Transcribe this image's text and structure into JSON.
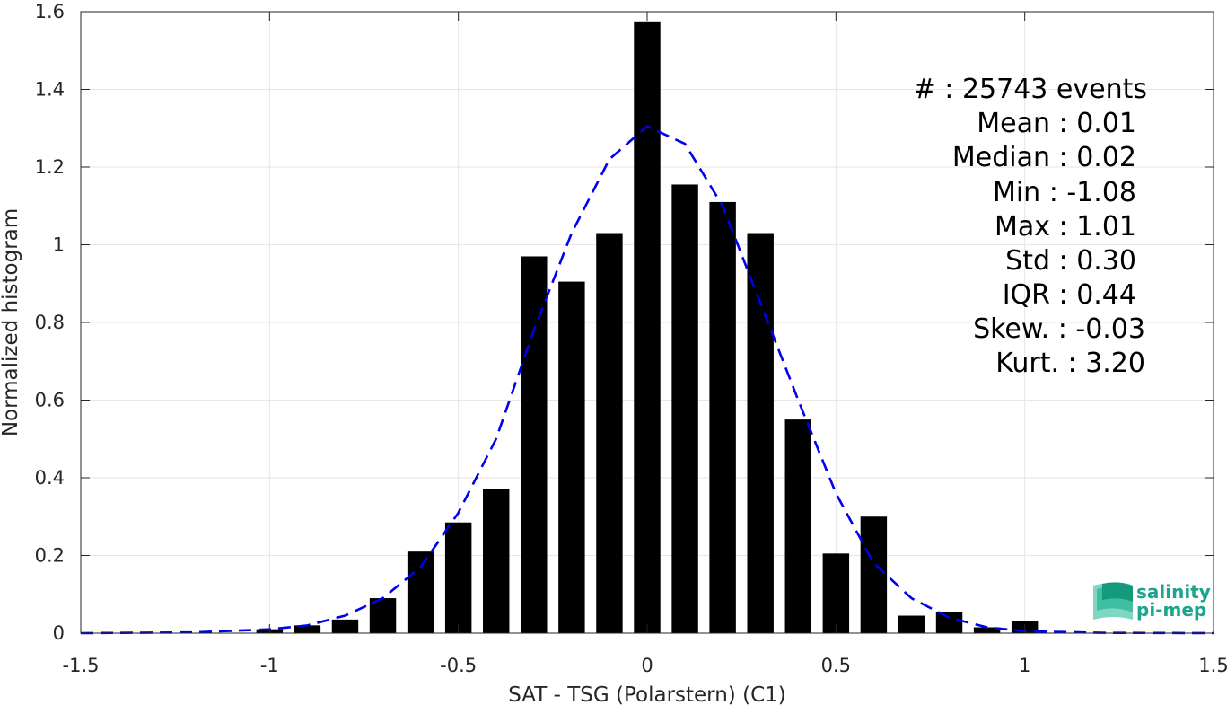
{
  "chart_data": {
    "type": "bar",
    "xlabel": "SAT - TSG (Polarstern) (C1)",
    "ylabel": "Normalized histogram",
    "xlim": [
      -1.5,
      1.5
    ],
    "ylim": [
      0,
      1.6
    ],
    "xticks": [
      "-1.5",
      "-1",
      "-0.5",
      "0",
      "0.5",
      "1",
      "1.5"
    ],
    "yticks": [
      "0",
      "0.2",
      "0.4",
      "0.6",
      "0.8",
      "1",
      "1.2",
      "1.4",
      "1.6"
    ],
    "grid": true,
    "bar_color": "#000000",
    "fit_color": "#0000ee",
    "x": [
      -1.0,
      -0.9,
      -0.8,
      -0.7,
      -0.6,
      -0.5,
      -0.4,
      -0.3,
      -0.2,
      -0.1,
      0.0,
      0.1,
      0.2,
      0.3,
      0.4,
      0.5,
      0.6,
      0.7,
      0.8,
      0.9,
      1.0
    ],
    "values": [
      0.01,
      0.02,
      0.035,
      0.09,
      0.21,
      0.285,
      0.37,
      0.97,
      0.905,
      1.03,
      1.575,
      1.155,
      1.11,
      1.03,
      0.55,
      0.205,
      0.3,
      0.045,
      0.055,
      0.015,
      0.03
    ],
    "fit": {
      "style": "dashed",
      "x": [
        -1.5,
        -1.2,
        -1.0,
        -0.9,
        -0.8,
        -0.7,
        -0.6,
        -0.5,
        -0.4,
        -0.3,
        -0.2,
        -0.1,
        0.0,
        0.1,
        0.2,
        0.3,
        0.4,
        0.5,
        0.6,
        0.7,
        0.8,
        0.9,
        1.0,
        1.2,
        1.5
      ],
      "y": [
        0.0,
        0.002,
        0.01,
        0.02,
        0.045,
        0.09,
        0.17,
        0.31,
        0.5,
        0.78,
        1.03,
        1.22,
        1.305,
        1.26,
        1.1,
        0.85,
        0.6,
        0.36,
        0.18,
        0.09,
        0.04,
        0.015,
        0.005,
        0.001,
        0.0
      ]
    },
    "stats": [
      {
        "label": "#  : 25743 events"
      },
      {
        "label": "Mean : 0.01"
      },
      {
        "label": "Median : 0.02"
      },
      {
        "label": "Min : -1.08"
      },
      {
        "label": "Max : 1.01"
      },
      {
        "label": "Std : 0.30"
      },
      {
        "label": "IQR : 0.44"
      },
      {
        "label": "Skew. : -0.03"
      },
      {
        "label": "Kurt. : 3.20"
      }
    ]
  },
  "logo": {
    "line1": "salinity",
    "line2": "pi-mep",
    "color": "#1aa58c"
  }
}
